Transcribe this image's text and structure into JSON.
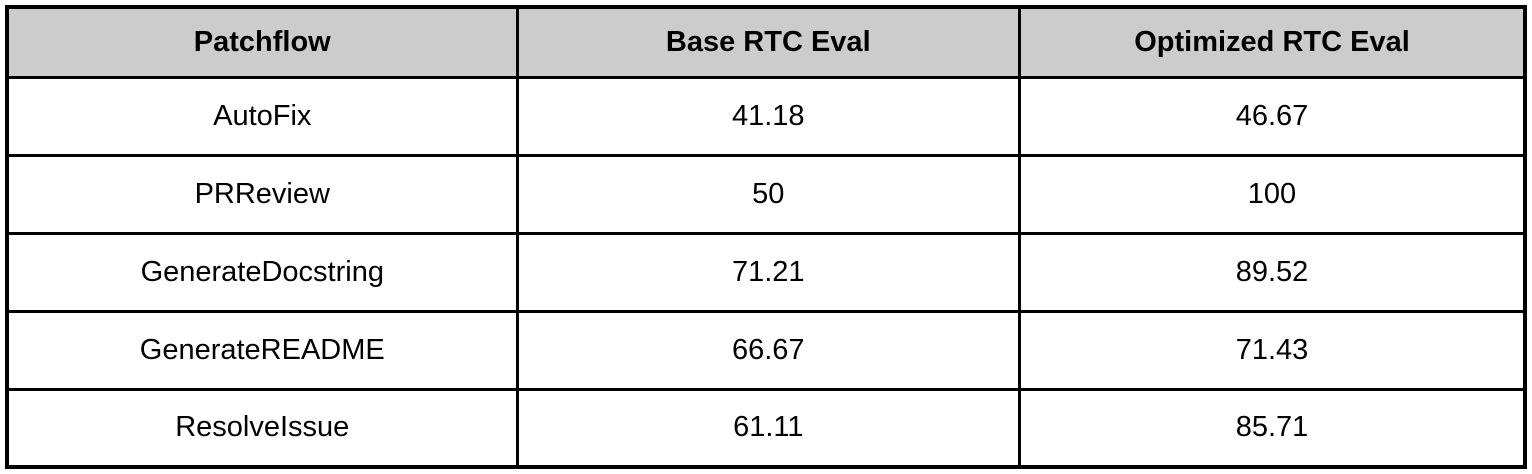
{
  "colors": {
    "header_bg": "#cccccc",
    "border": "#000000",
    "row_bg": "#ffffff",
    "text": "#000000"
  },
  "table": {
    "header": [
      "Patchflow",
      "Base RTC Eval",
      "Optimized RTC Eval"
    ],
    "rows": [
      [
        "AutoFix",
        "41.18",
        "46.67"
      ],
      [
        "PRReview",
        "50",
        "100"
      ],
      [
        "GenerateDocstring",
        "71.21",
        "89.52"
      ],
      [
        "GenerateREADME",
        "66.67",
        "71.43"
      ],
      [
        "ResolveIssue",
        "61.11",
        "85.71"
      ]
    ]
  },
  "chart_data": {
    "type": "table",
    "title": "",
    "columns": [
      "Patchflow",
      "Base RTC Eval",
      "Optimized RTC Eval"
    ],
    "rows": [
      [
        "AutoFix",
        41.18,
        46.67
      ],
      [
        "PRReview",
        50,
        100
      ],
      [
        "GenerateDocstring",
        71.21,
        89.52
      ],
      [
        "GenerateREADME",
        66.67,
        71.43
      ],
      [
        "ResolveIssue",
        61.11,
        85.71
      ]
    ]
  }
}
